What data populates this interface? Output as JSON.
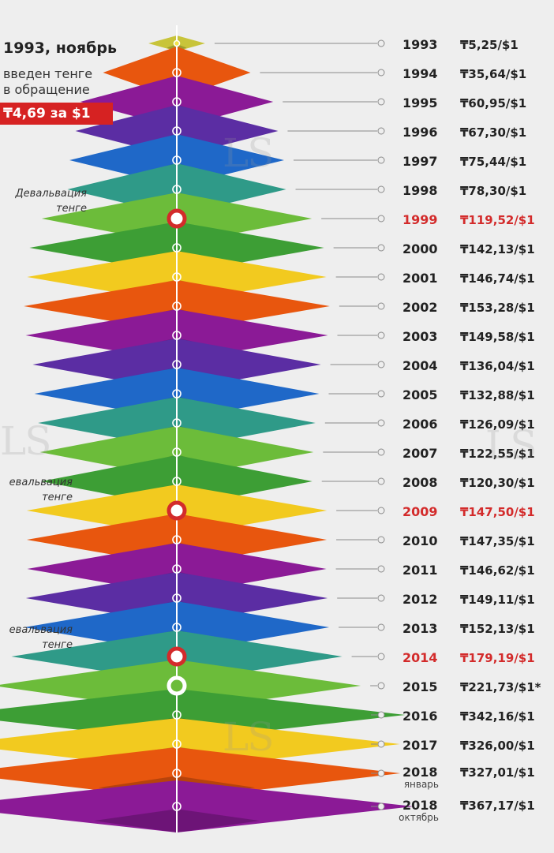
{
  "header": {
    "title": "1993, ноябрь",
    "line1": "введен тенге",
    "line2": "в обращение",
    "rate": "₸4,69 за $1"
  },
  "devaluation_label": [
    "Девальвация",
    "тенге"
  ],
  "devaluation_label_cut": [
    "евальвация",
    "тенге"
  ],
  "watermark": "LS",
  "colors": {
    "orange": "#e8560e",
    "purple": "#8b1a96",
    "violet": "#5b2da3",
    "blue": "#1f68c8",
    "teal": "#2f9a88",
    "green": "#4cae3a",
    "yellow": "#f2ca1f",
    "highlight": "#d32b2b"
  },
  "chart_data": {
    "type": "table",
    "title": "",
    "xlabel": "",
    "ylabel": "",
    "rows": [
      {
        "year": "1993",
        "rate": "₸5,25/$1",
        "value": 5.25,
        "color": "#c8c43a",
        "highlight": false
      },
      {
        "year": "1994",
        "rate": "₸35,64/$1",
        "value": 35.64,
        "color": "#e8560e",
        "highlight": false
      },
      {
        "year": "1995",
        "rate": "₸60,95/$1",
        "value": 60.95,
        "color": "#8b1a96",
        "highlight": false
      },
      {
        "year": "1996",
        "rate": "₸67,30/$1",
        "value": 67.3,
        "color": "#5b2da3",
        "highlight": false
      },
      {
        "year": "1997",
        "rate": "₸75,44/$1",
        "value": 75.44,
        "color": "#1f68c8",
        "highlight": false
      },
      {
        "year": "1998",
        "rate": "₸78,30/$1",
        "value": 78.3,
        "color": "#2f9a88",
        "highlight": false
      },
      {
        "year": "1999",
        "rate": "₸119,52/$1",
        "value": 119.52,
        "color": "#6cbc3a",
        "highlight": true
      },
      {
        "year": "2000",
        "rate": "₸142,13/$1",
        "value": 142.13,
        "color": "#3d9e35",
        "highlight": false
      },
      {
        "year": "2001",
        "rate": "₸146,74/$1",
        "value": 146.74,
        "color": "#f2ca1f",
        "highlight": false
      },
      {
        "year": "2002",
        "rate": "₸153,28/$1",
        "value": 153.28,
        "color": "#e8560e",
        "highlight": false
      },
      {
        "year": "2003",
        "rate": "₸149,58/$1",
        "value": 149.58,
        "color": "#8b1a96",
        "highlight": false
      },
      {
        "year": "2004",
        "rate": "₸136,04/$1",
        "value": 136.04,
        "color": "#5b2da3",
        "highlight": false
      },
      {
        "year": "2005",
        "rate": "₸132,88/$1",
        "value": 132.88,
        "color": "#1f68c8",
        "highlight": false
      },
      {
        "year": "2006",
        "rate": "₸126,09/$1",
        "value": 126.09,
        "color": "#2f9a88",
        "highlight": false
      },
      {
        "year": "2007",
        "rate": "₸122,55/$1",
        "value": 122.55,
        "color": "#6cbc3a",
        "highlight": false
      },
      {
        "year": "2008",
        "rate": "₸120,30/$1",
        "value": 120.3,
        "color": "#3d9e35",
        "highlight": false
      },
      {
        "year": "2009",
        "rate": "₸147,50/$1",
        "value": 147.5,
        "color": "#f2ca1f",
        "highlight": true
      },
      {
        "year": "2010",
        "rate": "₸147,35/$1",
        "value": 147.35,
        "color": "#e8560e",
        "highlight": false
      },
      {
        "year": "2011",
        "rate": "₸146,62/$1",
        "value": 146.62,
        "color": "#8b1a96",
        "highlight": false
      },
      {
        "year": "2012",
        "rate": "₸149,11/$1",
        "value": 149.11,
        "color": "#5b2da3",
        "highlight": false
      },
      {
        "year": "2013",
        "rate": "₸152,13/$1",
        "value": 152.13,
        "color": "#1f68c8",
        "highlight": false
      },
      {
        "year": "2014",
        "rate": "₸179,19/$1",
        "value": 179.19,
        "color": "#2f9a88",
        "highlight": true
      },
      {
        "year": "2015",
        "rate": "₸221,73/$1*",
        "value": 221.73,
        "color": "#6cbc3a",
        "highlight": false,
        "special": true
      },
      {
        "year": "2016",
        "rate": "₸342,16/$1",
        "value": 342.16,
        "color": "#3d9e35",
        "highlight": false
      },
      {
        "year": "2017",
        "rate": "₸326,00/$1",
        "value": 326.0,
        "color": "#f2ca1f",
        "highlight": false
      },
      {
        "year": "2018",
        "sub": "январь",
        "rate": "₸327,01/$1",
        "value": 327.01,
        "color": "#e8560e",
        "highlight": false
      },
      {
        "year": "2018",
        "sub": "октябрь",
        "rate": "₸367,17/$1",
        "value": 367.17,
        "color": "#8b1a96",
        "highlight": false
      }
    ]
  }
}
